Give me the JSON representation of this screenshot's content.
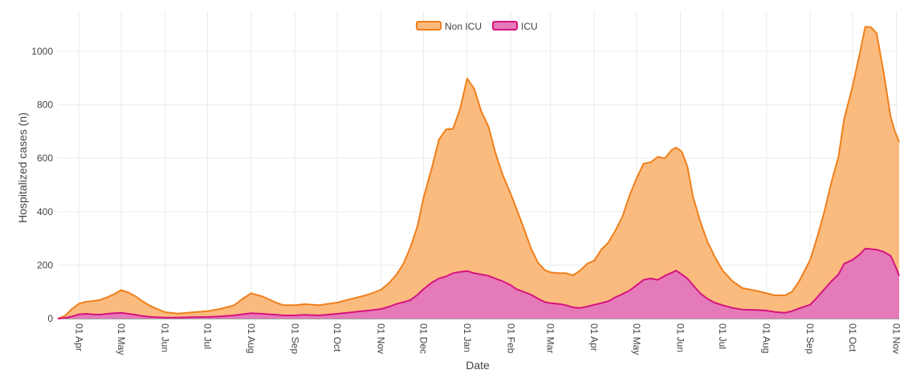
{
  "chart_data": {
    "type": "area",
    "stacked": true,
    "title": "",
    "xlabel": "Date",
    "ylabel": "Hospitalized cases (n)",
    "ylim": [
      0,
      1150
    ],
    "yticks": [
      0,
      200,
      400,
      600,
      800,
      1000
    ],
    "grid": true,
    "legend_position": "top-center",
    "x_ticks": [
      {
        "day": 15,
        "label": "01 Apr"
      },
      {
        "day": 45,
        "label": "01 May"
      },
      {
        "day": 76,
        "label": "01 Jun"
      },
      {
        "day": 106,
        "label": "01 Jul"
      },
      {
        "day": 137,
        "label": "01 Aug"
      },
      {
        "day": 168,
        "label": "01 Sep"
      },
      {
        "day": 198,
        "label": "01 Oct"
      },
      {
        "day": 229,
        "label": "01 Nov"
      },
      {
        "day": 259,
        "label": "01 Dec"
      },
      {
        "day": 290,
        "label": "01 Jan"
      },
      {
        "day": 321,
        "label": "01 Feb"
      },
      {
        "day": 349,
        "label": "01 Mar"
      },
      {
        "day": 380,
        "label": "01 Apr"
      },
      {
        "day": 410,
        "label": "01 May"
      },
      {
        "day": 441,
        "label": "01 Jun"
      },
      {
        "day": 471,
        "label": "01 Jul"
      },
      {
        "day": 502,
        "label": "01 Aug"
      },
      {
        "day": 533,
        "label": "01 Sep"
      },
      {
        "day": 563,
        "label": "01 Oct"
      },
      {
        "day": 594,
        "label": "01 Nov"
      }
    ],
    "x_range_days": [
      0,
      596
    ],
    "series": [
      {
        "name": "ICU",
        "color": "#d6137f",
        "fill": "#e57ab8",
        "points": [
          [
            0,
            0
          ],
          [
            5,
            2
          ],
          [
            10,
            8
          ],
          [
            15,
            16
          ],
          [
            20,
            18
          ],
          [
            25,
            16
          ],
          [
            30,
            15
          ],
          [
            35,
            18
          ],
          [
            40,
            20
          ],
          [
            45,
            22
          ],
          [
            50,
            18
          ],
          [
            55,
            14
          ],
          [
            60,
            10
          ],
          [
            65,
            7
          ],
          [
            70,
            5
          ],
          [
            76,
            4
          ],
          [
            85,
            4
          ],
          [
            95,
            5
          ],
          [
            106,
            6
          ],
          [
            115,
            8
          ],
          [
            125,
            12
          ],
          [
            130,
            16
          ],
          [
            137,
            20
          ],
          [
            145,
            18
          ],
          [
            155,
            14
          ],
          [
            160,
            12
          ],
          [
            168,
            12
          ],
          [
            175,
            14
          ],
          [
            185,
            12
          ],
          [
            190,
            14
          ],
          [
            198,
            18
          ],
          [
            205,
            22
          ],
          [
            215,
            28
          ],
          [
            220,
            30
          ],
          [
            229,
            36
          ],
          [
            235,
            45
          ],
          [
            240,
            55
          ],
          [
            245,
            62
          ],
          [
            250,
            70
          ],
          [
            255,
            90
          ],
          [
            259,
            110
          ],
          [
            265,
            135
          ],
          [
            270,
            150
          ],
          [
            275,
            158
          ],
          [
            280,
            170
          ],
          [
            285,
            175
          ],
          [
            290,
            178
          ],
          [
            295,
            170
          ],
          [
            300,
            165
          ],
          [
            305,
            160
          ],
          [
            310,
            150
          ],
          [
            315,
            140
          ],
          [
            321,
            125
          ],
          [
            325,
            110
          ],
          [
            330,
            100
          ],
          [
            335,
            90
          ],
          [
            340,
            75
          ],
          [
            345,
            62
          ],
          [
            349,
            58
          ],
          [
            355,
            55
          ],
          [
            360,
            50
          ],
          [
            365,
            42
          ],
          [
            370,
            40
          ],
          [
            375,
            45
          ],
          [
            380,
            52
          ],
          [
            385,
            58
          ],
          [
            390,
            65
          ],
          [
            395,
            80
          ],
          [
            400,
            92
          ],
          [
            405,
            105
          ],
          [
            410,
            125
          ],
          [
            415,
            145
          ],
          [
            420,
            150
          ],
          [
            425,
            145
          ],
          [
            430,
            160
          ],
          [
            435,
            172
          ],
          [
            438,
            180
          ],
          [
            442,
            165
          ],
          [
            446,
            150
          ],
          [
            450,
            125
          ],
          [
            455,
            95
          ],
          [
            460,
            75
          ],
          [
            465,
            60
          ],
          [
            471,
            50
          ],
          [
            478,
            40
          ],
          [
            485,
            34
          ],
          [
            495,
            32
          ],
          [
            502,
            30
          ],
          [
            508,
            25
          ],
          [
            515,
            22
          ],
          [
            520,
            28
          ],
          [
            525,
            38
          ],
          [
            533,
            52
          ],
          [
            538,
            80
          ],
          [
            543,
            110
          ],
          [
            548,
            140
          ],
          [
            553,
            165
          ],
          [
            557,
            205
          ],
          [
            563,
            220
          ],
          [
            568,
            240
          ],
          [
            572,
            262
          ],
          [
            576,
            260
          ],
          [
            580,
            258
          ],
          [
            585,
            250
          ],
          [
            590,
            235
          ],
          [
            593,
            200
          ],
          [
            595,
            175
          ],
          [
            596,
            160
          ]
        ]
      },
      {
        "name": "Non ICU",
        "color": "#f07f1b",
        "fill": "#fbbb7f",
        "points": [
          [
            0,
            0
          ],
          [
            5,
            8
          ],
          [
            10,
            28
          ],
          [
            15,
            40
          ],
          [
            20,
            45
          ],
          [
            25,
            50
          ],
          [
            30,
            55
          ],
          [
            35,
            62
          ],
          [
            40,
            72
          ],
          [
            45,
            85
          ],
          [
            50,
            80
          ],
          [
            55,
            70
          ],
          [
            60,
            55
          ],
          [
            65,
            42
          ],
          [
            70,
            32
          ],
          [
            76,
            20
          ],
          [
            85,
            15
          ],
          [
            95,
            18
          ],
          [
            106,
            22
          ],
          [
            115,
            28
          ],
          [
            125,
            38
          ],
          [
            130,
            55
          ],
          [
            137,
            75
          ],
          [
            145,
            65
          ],
          [
            155,
            45
          ],
          [
            160,
            38
          ],
          [
            168,
            38
          ],
          [
            175,
            40
          ],
          [
            185,
            38
          ],
          [
            190,
            40
          ],
          [
            198,
            42
          ],
          [
            205,
            48
          ],
          [
            215,
            55
          ],
          [
            220,
            60
          ],
          [
            229,
            72
          ],
          [
            235,
            90
          ],
          [
            240,
            110
          ],
          [
            245,
            145
          ],
          [
            250,
            200
          ],
          [
            255,
            260
          ],
          [
            259,
            340
          ],
          [
            265,
            430
          ],
          [
            270,
            520
          ],
          [
            275,
            550
          ],
          [
            280,
            540
          ],
          [
            285,
            610
          ],
          [
            290,
            720
          ],
          [
            295,
            690
          ],
          [
            300,
            610
          ],
          [
            305,
            560
          ],
          [
            310,
            470
          ],
          [
            315,
            400
          ],
          [
            321,
            340
          ],
          [
            325,
            300
          ],
          [
            330,
            240
          ],
          [
            335,
            175
          ],
          [
            340,
            135
          ],
          [
            345,
            120
          ],
          [
            349,
            115
          ],
          [
            355,
            115
          ],
          [
            360,
            120
          ],
          [
            365,
            120
          ],
          [
            370,
            140
          ],
          [
            375,
            160
          ],
          [
            380,
            165
          ],
          [
            385,
            200
          ],
          [
            390,
            220
          ],
          [
            395,
            250
          ],
          [
            400,
            290
          ],
          [
            405,
            355
          ],
          [
            410,
            400
          ],
          [
            415,
            435
          ],
          [
            420,
            435
          ],
          [
            425,
            460
          ],
          [
            430,
            440
          ],
          [
            435,
            460
          ],
          [
            438,
            460
          ],
          [
            442,
            460
          ],
          [
            446,
            420
          ],
          [
            450,
            330
          ],
          [
            455,
            270
          ],
          [
            460,
            215
          ],
          [
            465,
            175
          ],
          [
            471,
            130
          ],
          [
            478,
            100
          ],
          [
            485,
            80
          ],
          [
            495,
            72
          ],
          [
            502,
            65
          ],
          [
            508,
            62
          ],
          [
            515,
            65
          ],
          [
            520,
            72
          ],
          [
            525,
            100
          ],
          [
            533,
            168
          ],
          [
            538,
            225
          ],
          [
            543,
            290
          ],
          [
            548,
            370
          ],
          [
            553,
            440
          ],
          [
            557,
            540
          ],
          [
            563,
            650
          ],
          [
            568,
            750
          ],
          [
            572,
            830
          ],
          [
            576,
            830
          ],
          [
            580,
            810
          ],
          [
            585,
            670
          ],
          [
            590,
            520
          ],
          [
            593,
            500
          ],
          [
            595,
            500
          ],
          [
            596,
            500
          ]
        ]
      }
    ]
  },
  "legend": {
    "items": [
      {
        "label": "Non ICU",
        "color": "#f07f1b",
        "fill": "#fbbb7f"
      },
      {
        "label": "ICU",
        "color": "#d6137f",
        "fill": "#e57ab8"
      }
    ]
  }
}
